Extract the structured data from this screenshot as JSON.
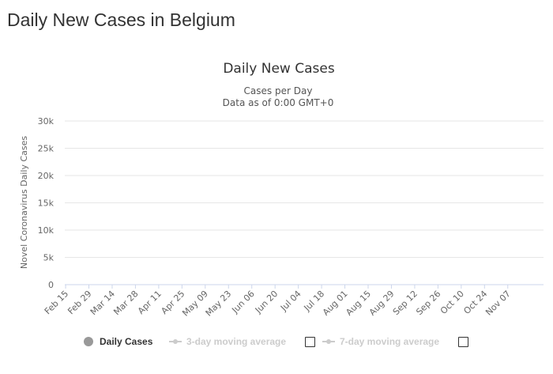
{
  "page": {
    "title": "Daily New Cases in Belgium"
  },
  "chart_data": {
    "type": "bar",
    "title": "Daily New Cases",
    "subtitle": "Cases per Day",
    "subtitle2": "Data as of 0:00 GMT+0",
    "ylabel": "Novel Coronavirus Daily Cases",
    "xlabel": "",
    "ylim": [
      0,
      30000
    ],
    "yticks": [
      0,
      5000,
      10000,
      15000,
      20000,
      25000,
      30000
    ],
    "ytick_labels": [
      "0",
      "5k",
      "10k",
      "15k",
      "20k",
      "25k",
      "30k"
    ],
    "xtick_labels": [
      "Feb 15",
      "Feb 29",
      "Mar 14",
      "Mar 28",
      "Apr 11",
      "Apr 25",
      "May 09",
      "May 23",
      "Jun 06",
      "Jun 20",
      "Jul 04",
      "Jul 18",
      "Aug 01",
      "Aug 15",
      "Aug 29",
      "Sep 12",
      "Sep 26",
      "Oct 10",
      "Oct 24",
      "Nov 07"
    ],
    "xtick_step_days": 14,
    "grid": true,
    "legend_position": "bottom",
    "start_date": "2020-02-15",
    "series": [
      {
        "name": "Daily Cases",
        "color": "#999999",
        "values": [
          0,
          0,
          0,
          0,
          0,
          0,
          0,
          0,
          0,
          0,
          0,
          0,
          0,
          0,
          0,
          0,
          0,
          0,
          0,
          0,
          0,
          0,
          0,
          0,
          0,
          0,
          0,
          0,
          0,
          0,
          0,
          0,
          0,
          0,
          0,
          0,
          0,
          0,
          0,
          0,
          0,
          0,
          0,
          0,
          0,
          0,
          0,
          0,
          0,
          0,
          0,
          0,
          0,
          0,
          0,
          0,
          0,
          0,
          0,
          0,
          0,
          0,
          0,
          0,
          0,
          0,
          0,
          0,
          0,
          0,
          0,
          0,
          0,
          0,
          0,
          0,
          0,
          0,
          0,
          0,
          0,
          0,
          0,
          0,
          0,
          0,
          0,
          0,
          0,
          0,
          0,
          0,
          0,
          0,
          0,
          0,
          0,
          0,
          0,
          0,
          0,
          0,
          0,
          0,
          0,
          0,
          0,
          0,
          0,
          0,
          0,
          0,
          0,
          0,
          0,
          0,
          0,
          0,
          0,
          0,
          0,
          0,
          0,
          0,
          0,
          0,
          0,
          0,
          0,
          0,
          0,
          0,
          0,
          0,
          0,
          0,
          0,
          0,
          0,
          0,
          0,
          0,
          0,
          0,
          0,
          0,
          0,
          0,
          0,
          0,
          0,
          0,
          0,
          0,
          0,
          0,
          0,
          0,
          0,
          0,
          0,
          0,
          0,
          0,
          0,
          0,
          0,
          0,
          0,
          0,
          0,
          0,
          0,
          0,
          0,
          0,
          0,
          0,
          0,
          0,
          0,
          0,
          0,
          0,
          0,
          0,
          0,
          0,
          0,
          0,
          0,
          0,
          0,
          0,
          0,
          0,
          0,
          0,
          0,
          0,
          0,
          0,
          0,
          0,
          0,
          0,
          0,
          0,
          0,
          0,
          0,
          0,
          0,
          0,
          0,
          0,
          0,
          0,
          0,
          0,
          0,
          0,
          0,
          0,
          0,
          0,
          0,
          0,
          0,
          0,
          0,
          0,
          0,
          0,
          0,
          0,
          0,
          0,
          0,
          0,
          0,
          0,
          0,
          0,
          0,
          0,
          0,
          0,
          0,
          0,
          0,
          0,
          0,
          0,
          0,
          0,
          0,
          0,
          0,
          0,
          0,
          0,
          0,
          0,
          0,
          0,
          0,
          0,
          0,
          0,
          0,
          0,
          0,
          0,
          0,
          0,
          0,
          0,
          0,
          0,
          0,
          0,
          0,
          0,
          0,
          0,
          0,
          0
        ]
      },
      {
        "name": "3-day moving average",
        "enabled": false
      },
      {
        "name": "7-day moving average",
        "enabled": false
      }
    ]
  }
}
